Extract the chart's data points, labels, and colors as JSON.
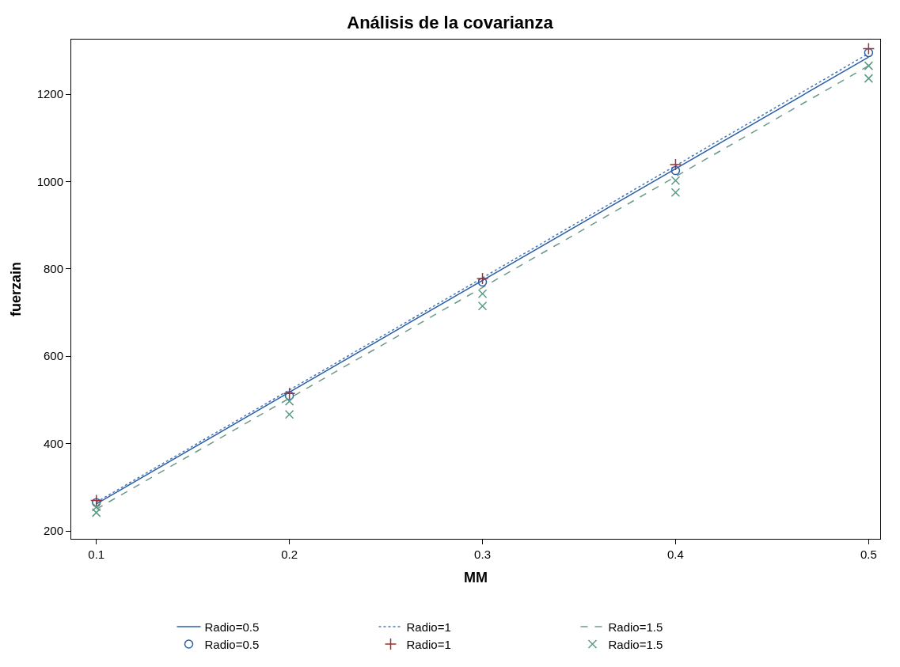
{
  "chart_data": {
    "type": "line",
    "title": "Análisis de la covarianza",
    "xlabel": "MM",
    "ylabel": "fuerzain",
    "xlim": [
      0.087,
      0.506
    ],
    "xticks": [
      0.1,
      0.2,
      0.3,
      0.4,
      0.5
    ],
    "ylim": [
      182,
      1325
    ],
    "yticks": [
      200,
      400,
      600,
      800,
      1000,
      1200
    ],
    "legend": "bottom",
    "series": [
      {
        "name": "Radio=0.5",
        "line_style": "solid",
        "color": "#2b5fa8",
        "x": [
          0.1,
          0.5
        ],
        "values": [
          262,
          1285
        ]
      },
      {
        "name": "Radio=1",
        "line_style": "dotted",
        "color": "#4a78b8",
        "x": [
          0.1,
          0.5
        ],
        "values": [
          266,
          1293
        ]
      },
      {
        "name": "Radio=1.5",
        "line_style": "dashed",
        "color": "#6a9a8a",
        "x": [
          0.1,
          0.5
        ],
        "values": [
          250,
          1265
        ]
      },
      {
        "name": "Radio=0.5",
        "type": "scatter",
        "marker": "circle",
        "color": "#2b5fa8",
        "x": [
          0.1,
          0.2,
          0.3,
          0.4,
          0.5
        ],
        "values": [
          265,
          510,
          770,
          1025,
          1295
        ]
      },
      {
        "name": "Radio=1",
        "type": "scatter",
        "marker": "cross",
        "color": "#a03030",
        "x": [
          0.1,
          0.2,
          0.3,
          0.4,
          0.5
        ],
        "values": [
          270,
          515,
          778,
          1039,
          1304
        ]
      },
      {
        "name": "Radio=1.5",
        "type": "scatter",
        "marker": "x",
        "color": "#5a9a80",
        "x": [
          0.1,
          0.1,
          0.2,
          0.2,
          0.3,
          0.3,
          0.4,
          0.4,
          0.5,
          0.5
        ],
        "values": [
          255,
          242,
          497,
          467,
          743,
          715,
          1002,
          975,
          1265,
          1236
        ]
      }
    ]
  }
}
